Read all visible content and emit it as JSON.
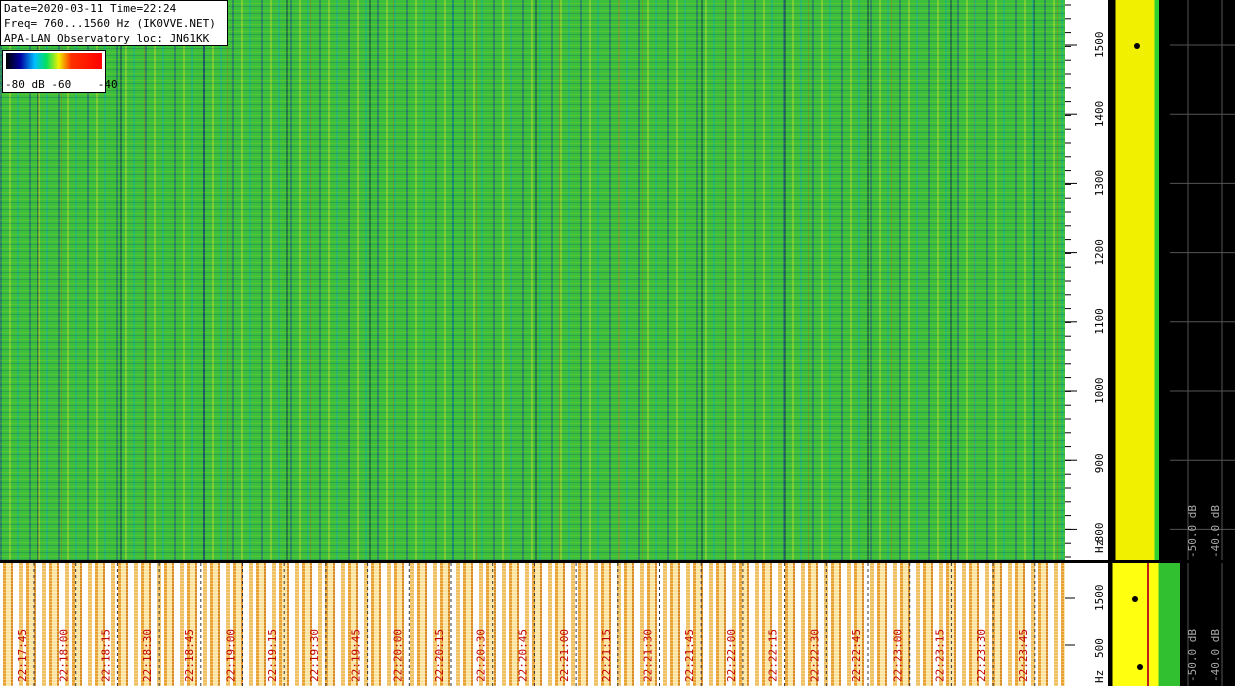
{
  "header": {
    "lines": [
      "Date=2020-03-11 Time=22:24",
      "Freq= 760...1560 Hz (IK0VVE.NET)",
      "APA-LAN Observatory loc: JN61KK"
    ]
  },
  "colorbar": {
    "labels": [
      "-80 dB",
      "-60",
      "-40"
    ]
  },
  "waterfall": {
    "freq_ticks": [
      1500,
      1400,
      1300,
      1200,
      1100,
      1000,
      900,
      800
    ],
    "unit": "Hz"
  },
  "level_panel": {
    "labels": [
      "-50.0 dB",
      "-40.0 dB"
    ]
  },
  "history": {
    "freq_ticks": [
      1500,
      500
    ],
    "unit": "Hz",
    "level_labels": [
      "-50.0 dB",
      "-40.0 dB"
    ],
    "times": [
      "22:17:45",
      "22:18:00",
      "22:18:15",
      "22:18:30",
      "22:18:45",
      "22:19:00",
      "22:19:15",
      "22:19:30",
      "22:19:45",
      "22:20:00",
      "22:20:15",
      "22:20:30",
      "22:20:45",
      "22:21:00",
      "22:21:15",
      "22:21:30",
      "22:21:45",
      "22:22:00",
      "22:22:15",
      "22:22:30",
      "22:22:45",
      "22:23:00",
      "22:23:15",
      "22:23:30",
      "22:23:45"
    ]
  }
}
